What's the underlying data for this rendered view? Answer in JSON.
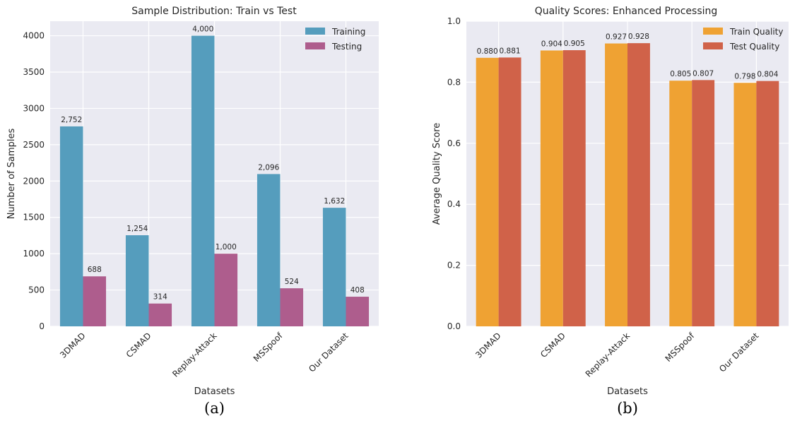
{
  "chart_data": [
    {
      "type": "bar",
      "title": "Sample Distribution: Train vs Test",
      "xlabel": "Datasets",
      "ylabel": "Number of Samples",
      "categories": [
        "3DMAD",
        "CSMAD",
        "Replay-Attack",
        "MSSpoof",
        "Our Dataset"
      ],
      "series": [
        {
          "name": "Training",
          "values": [
            2752,
            1254,
            4000,
            2096,
            1632
          ],
          "color": "#559DBD",
          "labels": [
            "2,752",
            "1,254",
            "4,000",
            "2,096",
            "1,632"
          ]
        },
        {
          "name": "Testing",
          "values": [
            688,
            314,
            1000,
            524,
            408
          ],
          "color": "#AE5D8D",
          "labels": [
            "688",
            "314",
            "1,000",
            "524",
            "408"
          ]
        }
      ],
      "ylim": [
        0,
        4200
      ],
      "yticks": [
        0,
        500,
        1000,
        1500,
        2000,
        2500,
        3000,
        3500,
        4000
      ],
      "ytick_labels": [
        "0",
        "500",
        "1000",
        "1500",
        "2000",
        "2500",
        "3000",
        "3500",
        "4000"
      ],
      "grid": true,
      "legend": "top-right",
      "caption": "(a)"
    },
    {
      "type": "bar",
      "title": "Quality Scores: Enhanced Processing",
      "xlabel": "Datasets",
      "ylabel": "Average Quality Score",
      "categories": [
        "3DMAD",
        "CSMAD",
        "Replay-Attack",
        "MSSpoof",
        "Our Dataset"
      ],
      "series": [
        {
          "name": "Train Quality",
          "values": [
            0.88,
            0.904,
            0.927,
            0.805,
            0.798
          ],
          "color": "#EFA233",
          "labels": [
            "0.880",
            "0.904",
            "0.927",
            "0.805",
            "0.798"
          ]
        },
        {
          "name": "Test Quality",
          "values": [
            0.881,
            0.905,
            0.928,
            0.807,
            0.804
          ],
          "color": "#D06249",
          "labels": [
            "0.881",
            "0.905",
            "0.928",
            "0.807",
            "0.804"
          ]
        }
      ],
      "ylim": [
        0,
        1.0
      ],
      "yticks": [
        0.0,
        0.2,
        0.4,
        0.6,
        0.8,
        1.0
      ],
      "ytick_labels": [
        "0.0",
        "0.2",
        "0.4",
        "0.6",
        "0.8",
        "1.0"
      ],
      "grid": true,
      "legend": "top-right",
      "caption": "(b)"
    }
  ],
  "style": {
    "plot_background": "#EAEAF2",
    "grid_color": "#FFFFFF",
    "text_color": "#262626"
  }
}
